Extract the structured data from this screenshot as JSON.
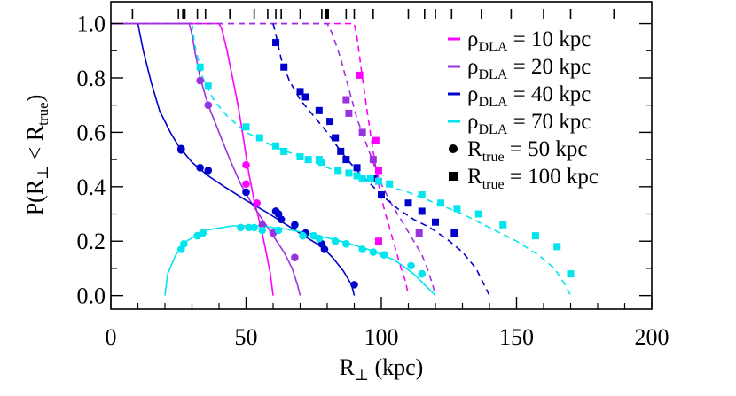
{
  "chart_data": {
    "type": "line",
    "xlabel": {
      "main": "R",
      "sub": "⊥",
      "rest": " (kpc)"
    },
    "ylabel": {
      "p1": "P(R",
      "s1": "⊥",
      "p2": " < R",
      "s2": "true",
      "p3": ")"
    },
    "xlim": [
      0,
      200
    ],
    "ylim": [
      -0.05,
      1.08
    ],
    "xticks": [
      0,
      50,
      100,
      150,
      200
    ],
    "xtick_labels": [
      "0",
      "50",
      "100",
      "150",
      "200"
    ],
    "yticks": [
      0.0,
      0.2,
      0.4,
      0.6,
      0.8,
      1.0
    ],
    "ytick_labels": [
      "0.0",
      "0.2",
      "0.4",
      "0.6",
      "0.8",
      "1.0"
    ],
    "legend_position": "right",
    "legend": [
      {
        "rho": "ρ",
        "sub": "DLA",
        "text": " = 10 kpc",
        "color": "#ff00ff",
        "dash": true
      },
      {
        "rho": "ρ",
        "sub": "DLA",
        "text": " = 20 kpc",
        "color": "#9933dd",
        "dash": true
      },
      {
        "rho": "ρ",
        "sub": "DLA",
        "text": " = 40 kpc",
        "color": "#0000cc",
        "dash": true
      },
      {
        "rho": "ρ",
        "sub": "DLA",
        "text": " = 70 kpc",
        "color": "#00e5ee",
        "dash": true
      },
      {
        "rho": "R",
        "sub": "true",
        "text": " = 50 kpc",
        "marker": "circle"
      },
      {
        "rho": "R",
        "sub": "true",
        "text": " = 100 kpc",
        "marker": "square"
      }
    ],
    "rug_x": [
      8,
      25,
      27,
      32,
      35,
      44,
      53,
      58,
      61,
      63,
      70,
      78,
      80,
      87,
      90,
      97,
      110,
      116,
      120,
      126,
      137,
      148,
      160,
      170,
      186
    ],
    "rug_heavy_x": [
      27,
      80
    ],
    "series": [
      {
        "name": "ρDLA = 10 kpc, Rtrue = 50 kpc",
        "color": "#ff00ff",
        "style": "solid",
        "marker": "circle",
        "curve": [
          [
            0,
            1.0
          ],
          [
            40,
            1.0
          ],
          [
            41,
            0.98
          ],
          [
            43,
            0.9
          ],
          [
            45,
            0.8
          ],
          [
            47,
            0.7
          ],
          [
            49,
            0.58
          ],
          [
            51,
            0.45
          ],
          [
            53,
            0.35
          ],
          [
            55,
            0.27
          ],
          [
            57,
            0.18
          ],
          [
            59,
            0.08
          ],
          [
            60,
            0.0
          ]
        ],
        "points": [
          [
            50,
            0.48
          ],
          [
            50,
            0.41
          ],
          [
            54,
            0.34
          ]
        ]
      },
      {
        "name": "ρDLA = 20 kpc, Rtrue = 50 kpc",
        "color": "#9933dd",
        "style": "solid",
        "marker": "circle",
        "curve": [
          [
            0,
            1.0
          ],
          [
            29,
            1.0
          ],
          [
            30,
            0.96
          ],
          [
            31,
            0.9
          ],
          [
            33,
            0.8
          ],
          [
            36,
            0.7
          ],
          [
            40,
            0.6
          ],
          [
            44,
            0.5
          ],
          [
            48,
            0.41
          ],
          [
            52,
            0.34
          ],
          [
            56,
            0.28
          ],
          [
            60,
            0.22
          ],
          [
            64,
            0.16
          ],
          [
            67,
            0.1
          ],
          [
            69,
            0.04
          ],
          [
            70,
            0.0
          ]
        ],
        "points": [
          [
            33,
            0.79
          ],
          [
            36,
            0.7
          ],
          [
            56,
            0.26
          ],
          [
            60,
            0.23
          ],
          [
            68,
            0.14
          ]
        ]
      },
      {
        "name": "ρDLA = 40 kpc, Rtrue = 50 kpc",
        "color": "#0000cc",
        "style": "solid",
        "marker": "circle",
        "curve": [
          [
            10,
            1.0
          ],
          [
            12,
            0.9
          ],
          [
            15,
            0.78
          ],
          [
            18,
            0.68
          ],
          [
            22,
            0.6
          ],
          [
            25,
            0.55
          ],
          [
            30,
            0.49
          ],
          [
            36,
            0.44
          ],
          [
            42,
            0.4
          ],
          [
            50,
            0.35
          ],
          [
            57,
            0.31
          ],
          [
            65,
            0.26
          ],
          [
            73,
            0.21
          ],
          [
            78,
            0.18
          ],
          [
            82,
            0.14
          ],
          [
            86,
            0.09
          ],
          [
            89,
            0.04
          ],
          [
            90,
            0.0
          ]
        ],
        "points": [
          [
            26,
            0.54
          ],
          [
            26,
            0.535
          ],
          [
            33,
            0.47
          ],
          [
            36,
            0.46
          ],
          [
            50,
            0.38
          ],
          [
            61,
            0.31
          ],
          [
            62,
            0.3
          ],
          [
            63,
            0.28
          ],
          [
            68,
            0.26
          ],
          [
            72,
            0.23
          ],
          [
            78,
            0.19
          ],
          [
            79,
            0.17
          ],
          [
            90,
            0.04
          ]
        ]
      },
      {
        "name": "ρDLA = 70 kpc, Rtrue = 50 kpc",
        "color": "#00e5ee",
        "style": "solid",
        "marker": "circle",
        "curve": [
          [
            20,
            0.0
          ],
          [
            21,
            0.08
          ],
          [
            24,
            0.15
          ],
          [
            28,
            0.2
          ],
          [
            35,
            0.24
          ],
          [
            45,
            0.256
          ],
          [
            55,
            0.256
          ],
          [
            65,
            0.244
          ],
          [
            75,
            0.225
          ],
          [
            85,
            0.2
          ],
          [
            95,
            0.17
          ],
          [
            105,
            0.13
          ],
          [
            112,
            0.08
          ],
          [
            117,
            0.03
          ],
          [
            120,
            0.0
          ]
        ],
        "points": [
          [
            26,
            0.17
          ],
          [
            27,
            0.19
          ],
          [
            32,
            0.22
          ],
          [
            34,
            0.23
          ],
          [
            48,
            0.25
          ],
          [
            51,
            0.25
          ],
          [
            53,
            0.25
          ],
          [
            56,
            0.24
          ],
          [
            62,
            0.24
          ],
          [
            71,
            0.22
          ],
          [
            75,
            0.22
          ],
          [
            77,
            0.21
          ],
          [
            83,
            0.2
          ],
          [
            87,
            0.19
          ],
          [
            93,
            0.17
          ],
          [
            97,
            0.16
          ],
          [
            101,
            0.15
          ],
          [
            111,
            0.11
          ],
          [
            115,
            0.08
          ]
        ]
      },
      {
        "name": "ρDLA = 10 kpc, Rtrue = 100 kpc",
        "color": "#ff00ff",
        "style": "dashed",
        "marker": "square",
        "curve": [
          [
            0,
            1.0
          ],
          [
            90,
            1.0
          ],
          [
            91,
            0.95
          ],
          [
            93,
            0.8
          ],
          [
            95,
            0.66
          ],
          [
            97,
            0.53
          ],
          [
            99,
            0.41
          ],
          [
            101,
            0.32
          ],
          [
            103,
            0.25
          ],
          [
            105,
            0.18
          ],
          [
            107,
            0.11
          ],
          [
            109,
            0.05
          ],
          [
            110,
            0.0
          ]
        ],
        "points": [
          [
            92,
            0.81
          ],
          [
            98,
            0.57
          ],
          [
            99,
            0.46
          ],
          [
            99,
            0.2
          ]
        ]
      },
      {
        "name": "ρDLA = 20 kpc, Rtrue = 100 kpc",
        "color": "#9933dd",
        "style": "dashed",
        "marker": "square",
        "curve": [
          [
            0,
            1.0
          ],
          [
            80,
            1.0
          ],
          [
            82,
            0.96
          ],
          [
            85,
            0.87
          ],
          [
            88,
            0.76
          ],
          [
            91,
            0.65
          ],
          [
            94,
            0.57
          ],
          [
            97,
            0.49
          ],
          [
            100,
            0.41
          ],
          [
            103,
            0.35
          ],
          [
            106,
            0.3
          ],
          [
            109,
            0.25
          ],
          [
            112,
            0.2
          ],
          [
            115,
            0.15
          ],
          [
            117,
            0.1
          ],
          [
            119,
            0.04
          ],
          [
            120,
            0.0
          ]
        ],
        "points": [
          [
            87,
            0.72
          ],
          [
            88,
            0.67
          ],
          [
            93,
            0.6
          ],
          [
            97,
            0.5
          ],
          [
            114,
            0.23
          ]
        ]
      },
      {
        "name": "ρDLA = 40 kpc, Rtrue = 100 kpc",
        "color": "#0000cc",
        "style": "dashed",
        "marker": "square",
        "curve": [
          [
            60,
            1.0
          ],
          [
            61,
            0.96
          ],
          [
            63,
            0.87
          ],
          [
            66,
            0.79
          ],
          [
            70,
            0.72
          ],
          [
            75,
            0.66
          ],
          [
            80,
            0.6
          ],
          [
            85,
            0.53
          ],
          [
            90,
            0.47
          ],
          [
            95,
            0.42
          ],
          [
            100,
            0.37
          ],
          [
            106,
            0.32
          ],
          [
            112,
            0.28
          ],
          [
            118,
            0.25
          ],
          [
            124,
            0.21
          ],
          [
            130,
            0.16
          ],
          [
            135,
            0.1
          ],
          [
            138,
            0.04
          ],
          [
            140,
            0.0
          ]
        ],
        "points": [
          [
            61,
            0.93
          ],
          [
            64,
            0.84
          ],
          [
            70,
            0.75
          ],
          [
            72,
            0.73
          ],
          [
            77,
            0.68
          ],
          [
            81,
            0.64
          ],
          [
            83,
            0.58
          ],
          [
            85,
            0.53
          ],
          [
            87,
            0.5
          ],
          [
            91,
            0.47
          ],
          [
            97,
            0.43
          ],
          [
            100,
            0.37
          ],
          [
            110,
            0.34
          ],
          [
            115,
            0.31
          ],
          [
            120,
            0.27
          ],
          [
            127,
            0.23
          ]
        ]
      },
      {
        "name": "ρDLA = 70 kpc, Rtrue = 100 kpc",
        "color": "#00e5ee",
        "style": "dashed",
        "marker": "square",
        "curve": [
          [
            30,
            1.0
          ],
          [
            31,
            0.92
          ],
          [
            34,
            0.8
          ],
          [
            38,
            0.72
          ],
          [
            43,
            0.66
          ],
          [
            50,
            0.6
          ],
          [
            60,
            0.55
          ],
          [
            70,
            0.51
          ],
          [
            80,
            0.47
          ],
          [
            90,
            0.44
          ],
          [
            100,
            0.41
          ],
          [
            110,
            0.38
          ],
          [
            120,
            0.34
          ],
          [
            130,
            0.3
          ],
          [
            140,
            0.25
          ],
          [
            150,
            0.2
          ],
          [
            158,
            0.15
          ],
          [
            164,
            0.1
          ],
          [
            168,
            0.04
          ],
          [
            170,
            0.0
          ]
        ],
        "points": [
          [
            33,
            0.84
          ],
          [
            36,
            0.77
          ],
          [
            50,
            0.62
          ],
          [
            55,
            0.58
          ],
          [
            61,
            0.55
          ],
          [
            64,
            0.53
          ],
          [
            70,
            0.51
          ],
          [
            73,
            0.5
          ],
          [
            77,
            0.5
          ],
          [
            78,
            0.49
          ],
          [
            84,
            0.46
          ],
          [
            88,
            0.45
          ],
          [
            91,
            0.44
          ],
          [
            93,
            0.43
          ],
          [
            96,
            0.43
          ],
          [
            99,
            0.42
          ],
          [
            103,
            0.41
          ],
          [
            115,
            0.37
          ],
          [
            122,
            0.34
          ],
          [
            128,
            0.32
          ],
          [
            136,
            0.3
          ],
          [
            145,
            0.26
          ],
          [
            157,
            0.22
          ],
          [
            165,
            0.18
          ],
          [
            170,
            0.08
          ]
        ]
      }
    ]
  }
}
